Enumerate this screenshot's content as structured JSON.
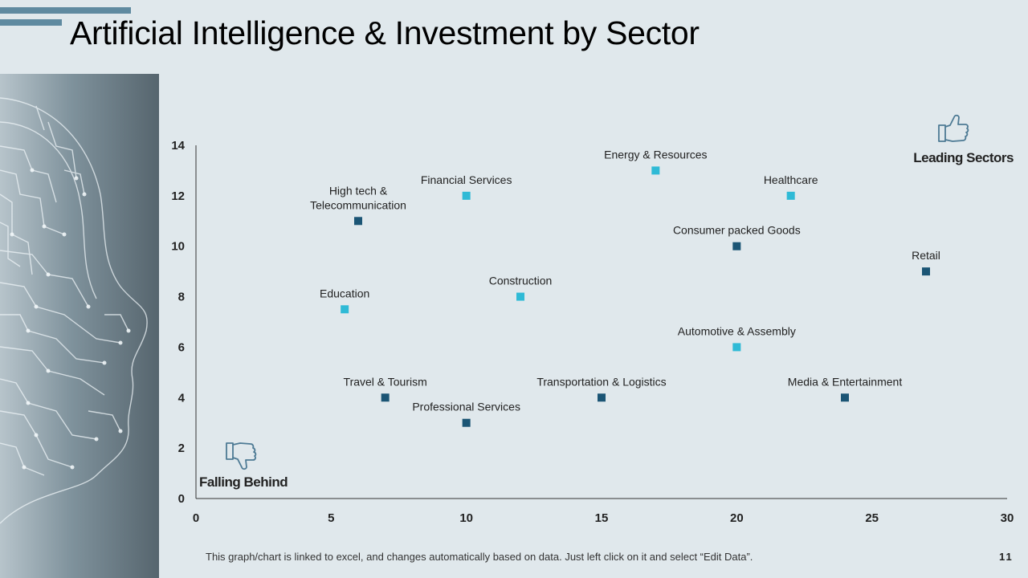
{
  "slide": {
    "title": "Artificial Intelligence & Investment by Sector",
    "footnote": "This graph/chart is linked to excel, and changes automatically based on data. Just left click on it and select “Edit Data”.",
    "page_number": "11"
  },
  "colors": {
    "accent_bar": "#5f8aa0",
    "dark_marker": "#1b5575",
    "light_marker": "#2fbad6",
    "icon_stroke": "#4d7a94"
  },
  "chart_data": {
    "type": "scatter",
    "title": "",
    "xlabel": "",
    "ylabel": "",
    "xlim": [
      0,
      30
    ],
    "ylim": [
      0,
      14
    ],
    "x_ticks": [
      "0",
      "5",
      "10",
      "15",
      "20",
      "25",
      "30"
    ],
    "y_ticks": [
      "0",
      "2",
      "4",
      "6",
      "8",
      "10",
      "12",
      "14"
    ],
    "grid": false,
    "corner_labels": {
      "top_right": "Leading Sectors",
      "bottom_left": "Falling Behind"
    },
    "points": [
      {
        "label_lines": [
          "High tech &",
          "Telecommunication"
        ],
        "x": 6,
        "y": 11,
        "style": "dark"
      },
      {
        "label_lines": [
          "Financial Services"
        ],
        "x": 10,
        "y": 12,
        "style": "light"
      },
      {
        "label_lines": [
          "Energy & Resources"
        ],
        "x": 17,
        "y": 13,
        "style": "light"
      },
      {
        "label_lines": [
          "Healthcare"
        ],
        "x": 22,
        "y": 12,
        "style": "light"
      },
      {
        "label_lines": [
          "Consumer packed Goods"
        ],
        "x": 20,
        "y": 10,
        "style": "dark"
      },
      {
        "label_lines": [
          "Retail"
        ],
        "x": 27,
        "y": 9,
        "style": "dark"
      },
      {
        "label_lines": [
          "Education"
        ],
        "x": 5.5,
        "y": 7.5,
        "style": "light"
      },
      {
        "label_lines": [
          "Construction"
        ],
        "x": 12,
        "y": 8,
        "style": "light"
      },
      {
        "label_lines": [
          "Automotive & Assembly"
        ],
        "x": 20,
        "y": 6,
        "style": "light"
      },
      {
        "label_lines": [
          "Travel & Tourism"
        ],
        "x": 7,
        "y": 4,
        "style": "dark"
      },
      {
        "label_lines": [
          "Transportation & Logistics"
        ],
        "x": 15,
        "y": 4,
        "style": "dark"
      },
      {
        "label_lines": [
          "Media & Entertainment"
        ],
        "x": 24,
        "y": 4,
        "style": "dark"
      },
      {
        "label_lines": [
          "Professional Services"
        ],
        "x": 10,
        "y": 3,
        "style": "dark"
      }
    ]
  }
}
